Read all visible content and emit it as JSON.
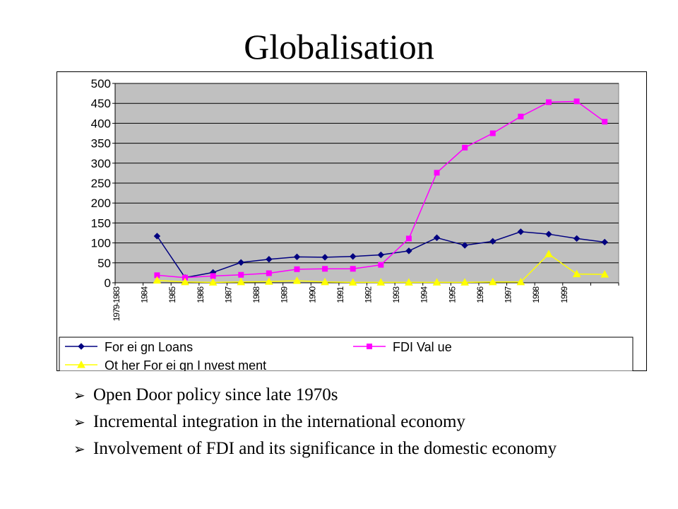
{
  "slide": {
    "title": "Globalisation",
    "bullets": [
      "Open Door policy since late 1970s",
      "Incremental integration in the international economy",
      "Involvement of FDI and its significance in the domestic economy"
    ],
    "bullet_icon": "arrow-bullet-icon"
  },
  "colors": {
    "plot_bg": "#c0c0c0",
    "foreign_loans": "#000080",
    "fdi_value": "#ff00ff",
    "other_investment": "#ffff00"
  },
  "chart_data": {
    "type": "line",
    "title": "",
    "xlabel": "",
    "ylabel": "",
    "ylim": [
      0,
      500
    ],
    "yticks": [
      0,
      50,
      100,
      150,
      200,
      250,
      300,
      350,
      400,
      450,
      500
    ],
    "categories": [
      "1979-1983",
      "1984",
      "1985",
      "1986",
      "1987",
      "1988",
      "1989",
      "1990",
      "1991",
      "1992",
      "1993",
      "1994",
      "1995",
      "1996",
      "1997",
      "1998",
      "1999",
      ""
    ],
    "series": [
      {
        "name": "Foreign Loans",
        "marker": "diamond",
        "values": [
          null,
          117,
          13,
          26,
          51,
          59,
          65,
          64,
          66,
          70,
          80,
          113,
          94,
          104,
          128,
          122,
          111,
          102
        ]
      },
      {
        "name": "FDI Value",
        "marker": "square",
        "values": [
          null,
          19,
          13,
          17,
          20,
          24,
          34,
          35,
          35,
          45,
          111,
          276,
          339,
          375,
          417,
          453,
          455,
          404
        ]
      },
      {
        "name": "Other Foreign Investment",
        "marker": "triangle",
        "values": [
          null,
          6,
          2,
          1,
          2,
          3,
          5,
          2,
          1,
          1,
          1,
          1,
          1,
          2,
          2,
          72,
          22,
          21
        ]
      }
    ],
    "legend": {
      "position": "bottom",
      "labels": [
        "For ei gn  Loans",
        "FDI   Val ue",
        "Ot her   For ei gn  I nvest ment"
      ]
    }
  }
}
